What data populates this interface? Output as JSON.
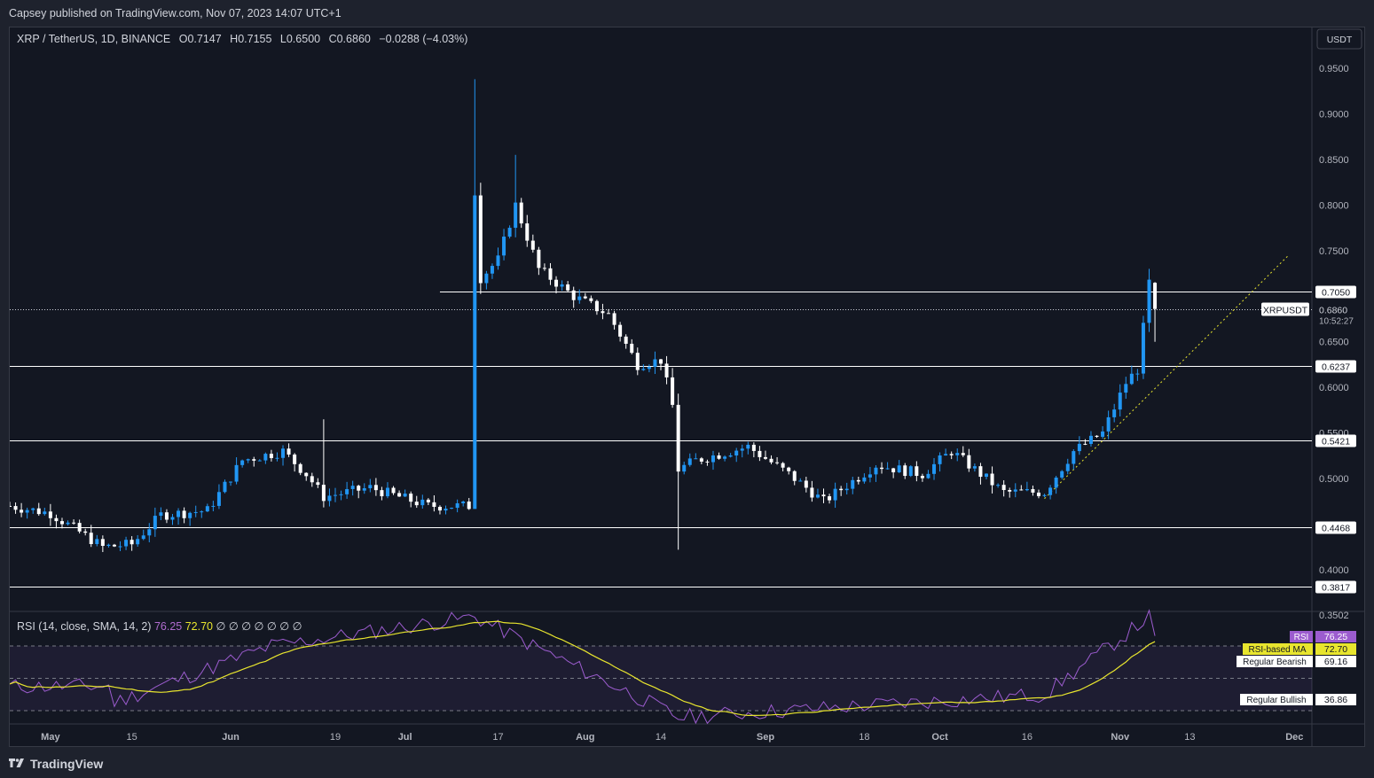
{
  "header": {
    "publisher": "Capsey published on TradingView.com, Nov 07, 2023 14:07 UTC+1"
  },
  "legend": {
    "symbol": "XRP / TetherUS, 1D, BINANCE",
    "open_label": "O",
    "open": "0.7147",
    "high_label": "H",
    "high": "0.7155",
    "low_label": "L",
    "low": "0.6500",
    "close_label": "C",
    "close": "0.6860",
    "change": "−0.0288 (−4.03%)"
  },
  "rsi_legend": {
    "title": "RSI (14, close, SMA, 14, 2)",
    "rsi_value": "76.25",
    "ma_value": "72.70",
    "hidden": "∅ ∅ ∅ ∅ ∅ ∅ ∅"
  },
  "currency_button": "USDT",
  "price_tags": {
    "symbol": "XRPUSDT",
    "last_price": "0.6860",
    "countdown": "10:52:27",
    "rsi_label": "RSI",
    "rsi_value": "76.25",
    "ma_label": "RSI-based MA",
    "ma_value": "72.70",
    "bearish_label": "Regular Bearish",
    "bearish_value": "69.16",
    "bullish_label": "Regular Bullish",
    "bullish_value": "36.86"
  },
  "branding": {
    "logo_text": "TradingView"
  },
  "colors": {
    "background": "#131722",
    "bull_candle": "#2196f3",
    "bear_candle": "#ffffff",
    "rsi_line": "#9c5ccf",
    "rsi_ma": "#e8e52e",
    "grid_text": "#b2b5be"
  },
  "chart_data": [
    {
      "type": "candlestick",
      "title": "XRP / TetherUS, 1D, BINANCE",
      "y_ticks": [
        "0.9500",
        "0.9000",
        "0.8500",
        "0.8000",
        "0.7500",
        "0.6500",
        "0.6000",
        "0.5500",
        "0.5000",
        "0.4000",
        "0.3502"
      ],
      "ylim": [
        0.33,
        0.98
      ],
      "x_ticks": [
        "May",
        "15",
        "Jun",
        "19",
        "Jul",
        "17",
        "Aug",
        "14",
        "Sep",
        "18",
        "Oct",
        "16",
        "Nov",
        "13",
        "Dec"
      ],
      "x_tick_dates": [
        "2023-05-01",
        "2023-05-15",
        "2023-06-01",
        "2023-06-19",
        "2023-07-01",
        "2023-07-17",
        "2023-08-01",
        "2023-08-14",
        "2023-09-01",
        "2023-09-18",
        "2023-10-01",
        "2023-10-16",
        "2023-11-01",
        "2023-11-13",
        "2023-12-01"
      ],
      "x_range": [
        "2023-04-24",
        "2023-12-04"
      ],
      "horizontal_levels": [
        0.705,
        0.6237,
        0.5421,
        0.4468,
        0.3817
      ],
      "horizontal_level_labels": [
        "0.7050",
        "0.6237",
        "0.5421",
        "0.4468",
        "0.3817"
      ],
      "last_price_line": 0.686,
      "trendline": {
        "from": [
          "2023-10-19",
          0.478
        ],
        "to": [
          "2023-11-30",
          0.745
        ]
      },
      "key_points": [
        {
          "date": "2023-04-24",
          "close": 0.47
        },
        {
          "date": "2023-05-01",
          "close": 0.462
        },
        {
          "date": "2023-05-10",
          "close": 0.425
        },
        {
          "date": "2023-05-15",
          "close": 0.428
        },
        {
          "date": "2023-05-20",
          "close": 0.46
        },
        {
          "date": "2023-05-28",
          "close": 0.465
        },
        {
          "date": "2023-06-03",
          "close": 0.52
        },
        {
          "date": "2023-06-10",
          "close": 0.53
        },
        {
          "date": "2023-06-14",
          "close": 0.505
        },
        {
          "date": "2023-06-17",
          "close": 0.48
        },
        {
          "date": "2023-06-25",
          "close": 0.49
        },
        {
          "date": "2023-07-05",
          "close": 0.47
        },
        {
          "date": "2023-07-12",
          "close": 0.47
        },
        {
          "date": "2023-07-13",
          "close": 0.815
        },
        {
          "date": "2023-07-14",
          "close": 0.72
        },
        {
          "date": "2023-07-17",
          "close": 0.74
        },
        {
          "date": "2023-07-20",
          "close": 0.8
        },
        {
          "date": "2023-07-24",
          "close": 0.73
        },
        {
          "date": "2023-07-30",
          "close": 0.7
        },
        {
          "date": "2023-08-05",
          "close": 0.68
        },
        {
          "date": "2023-08-10",
          "close": 0.625
        },
        {
          "date": "2023-08-14",
          "close": 0.63
        },
        {
          "date": "2023-08-16",
          "close": 0.58
        },
        {
          "date": "2023-08-17",
          "close": 0.51
        },
        {
          "date": "2023-08-20",
          "close": 0.52
        },
        {
          "date": "2023-08-29",
          "close": 0.535
        },
        {
          "date": "2023-09-05",
          "close": 0.505
        },
        {
          "date": "2023-09-11",
          "close": 0.475
        },
        {
          "date": "2023-09-20",
          "close": 0.515
        },
        {
          "date": "2023-09-28",
          "close": 0.505
        },
        {
          "date": "2023-10-03",
          "close": 0.53
        },
        {
          "date": "2023-10-12",
          "close": 0.485
        },
        {
          "date": "2023-10-19",
          "close": 0.485
        },
        {
          "date": "2023-10-24",
          "close": 0.53
        },
        {
          "date": "2023-10-29",
          "close": 0.55
        },
        {
          "date": "2023-11-02",
          "close": 0.605
        },
        {
          "date": "2023-11-04",
          "close": 0.62
        },
        {
          "date": "2023-11-05",
          "close": 0.665
        },
        {
          "date": "2023-11-06",
          "close": 0.7147
        },
        {
          "date": "2023-11-07",
          "open": 0.7147,
          "high": 0.7155,
          "low": 0.65,
          "close": 0.686
        }
      ]
    },
    {
      "type": "line",
      "title": "RSI (14, close, SMA, 14, 2)",
      "series": [
        {
          "name": "RSI",
          "last": 76.25
        },
        {
          "name": "RSI-based MA",
          "last": 72.7
        }
      ],
      "bands": [
        30,
        50,
        70
      ],
      "divergence_levels": [
        69.16,
        36.86
      ],
      "key_points": [
        {
          "date": "2023-05-12",
          "rsi": 35
        },
        {
          "date": "2023-06-08",
          "rsi": 70
        },
        {
          "date": "2023-07-13",
          "rsi": 88
        },
        {
          "date": "2023-08-17",
          "rsi": 26
        },
        {
          "date": "2023-10-19",
          "rsi": 40
        },
        {
          "date": "2023-11-06",
          "rsi": 88
        },
        {
          "date": "2023-11-07",
          "rsi": 76.25
        }
      ]
    }
  ]
}
